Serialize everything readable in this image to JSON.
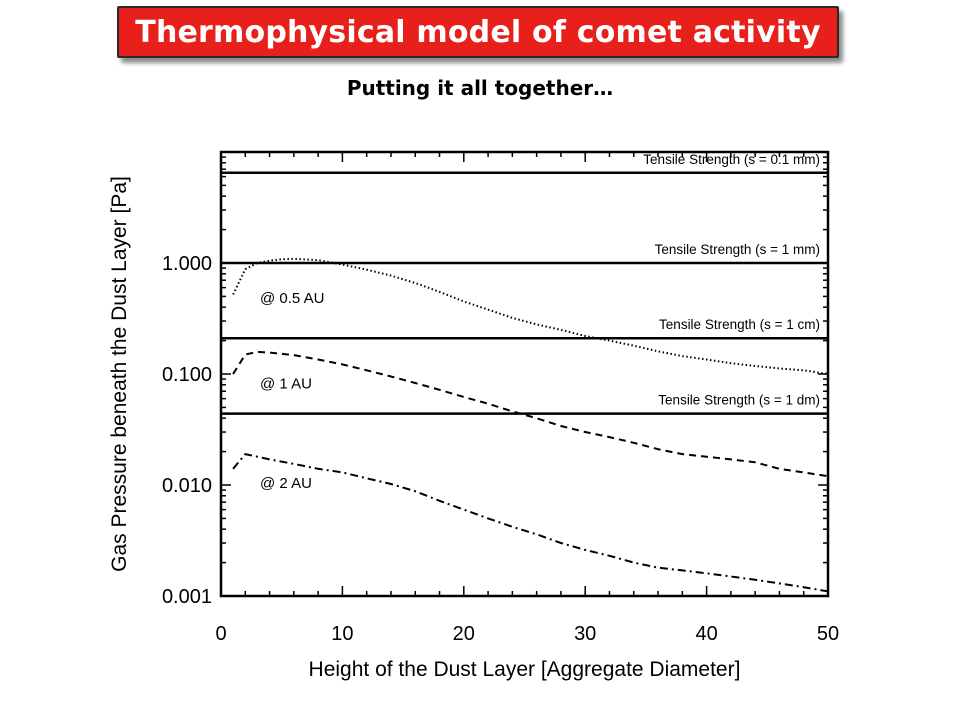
{
  "slide": {
    "title": "Thermophysical model of comet activity",
    "subtitle": "Putting it all together…"
  },
  "colors": {
    "title_bg": "#e8201c",
    "title_text": "#ffffff"
  },
  "chart_data": {
    "type": "line",
    "xlabel": "Height of the Dust Layer [Aggregate Diameter]",
    "ylabel": "Gas Pressure beneath the Dust Layer [Pa]",
    "xlim": [
      0,
      50
    ],
    "ylim": [
      0.001,
      10
    ],
    "y_scale": "log",
    "x_ticks": [
      "0",
      "10",
      "20",
      "30",
      "40",
      "50"
    ],
    "y_ticks": [
      {
        "value": 0.001,
        "label": "0.001"
      },
      {
        "value": 0.01,
        "label": "0.010"
      },
      {
        "value": 0.1,
        "label": "0.100"
      },
      {
        "value": 1,
        "label": "1.000"
      }
    ],
    "grid": false,
    "thresholds": [
      {
        "label": "Tensile Strength (s = 0.1 mm)",
        "value": 6.5
      },
      {
        "label": "Tensile Strength (s = 1 mm)",
        "value": 1.0
      },
      {
        "label": "Tensile Strength (s = 1 cm)",
        "value": 0.21
      },
      {
        "label": "Tensile Strength (s = 1 dm)",
        "value": 0.044
      }
    ],
    "series": [
      {
        "name": "@ 0.5 AU",
        "style": "dotted",
        "x": [
          1,
          2,
          3,
          4,
          5,
          6,
          8,
          10,
          12,
          14,
          16,
          18,
          20,
          22,
          24,
          26,
          28,
          30,
          32,
          34,
          36,
          38,
          40,
          42,
          44,
          46,
          48,
          50
        ],
        "y": [
          0.52,
          0.88,
          1.0,
          1.05,
          1.08,
          1.09,
          1.06,
          0.97,
          0.87,
          0.77,
          0.66,
          0.55,
          0.45,
          0.38,
          0.32,
          0.28,
          0.25,
          0.22,
          0.2,
          0.18,
          0.16,
          0.145,
          0.135,
          0.125,
          0.118,
          0.112,
          0.108,
          0.1
        ]
      },
      {
        "name": "@ 1 AU",
        "style": "dashed",
        "x": [
          1,
          2,
          3,
          4,
          6,
          8,
          10,
          12,
          14,
          16,
          18,
          20,
          22,
          24,
          26,
          28,
          30,
          32,
          34,
          36,
          38,
          40,
          42,
          44,
          46,
          48,
          50
        ],
        "y": [
          0.1,
          0.15,
          0.158,
          0.156,
          0.148,
          0.135,
          0.122,
          0.108,
          0.095,
          0.083,
          0.072,
          0.062,
          0.054,
          0.046,
          0.04,
          0.034,
          0.03,
          0.027,
          0.024,
          0.021,
          0.019,
          0.018,
          0.017,
          0.016,
          0.014,
          0.013,
          0.012
        ]
      },
      {
        "name": "@ 2 AU",
        "style": "dashdot",
        "x": [
          1,
          2,
          3,
          4,
          6,
          8,
          10,
          12,
          14,
          16,
          18,
          20,
          22,
          24,
          26,
          28,
          30,
          32,
          34,
          36,
          38,
          40,
          42,
          44,
          46,
          48,
          50
        ],
        "y": [
          0.014,
          0.019,
          0.018,
          0.017,
          0.0155,
          0.014,
          0.013,
          0.0115,
          0.0102,
          0.0088,
          0.0072,
          0.006,
          0.005,
          0.0042,
          0.0036,
          0.003,
          0.0026,
          0.0023,
          0.002,
          0.0018,
          0.0017,
          0.0016,
          0.0015,
          0.0014,
          0.0013,
          0.0012,
          0.0011
        ]
      }
    ]
  }
}
